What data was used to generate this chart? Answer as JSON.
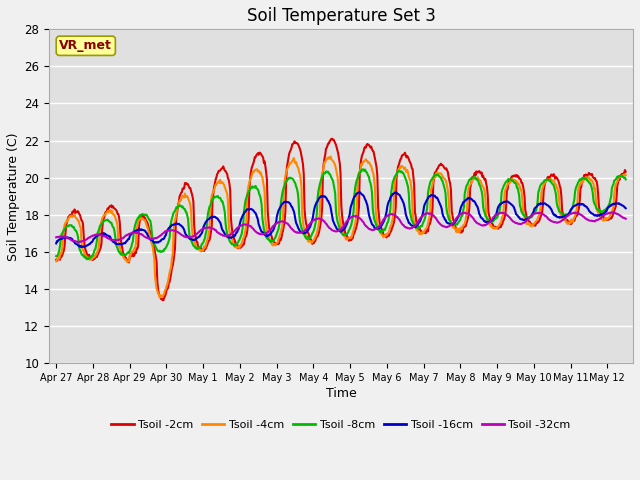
{
  "title": "Soil Temperature Set 3",
  "xlabel": "Time",
  "ylabel": "Soil Temperature (C)",
  "ylim": [
    10,
    28
  ],
  "annotation": "VR_met",
  "plot_bg_color": "#e0e0e0",
  "fig_bg_color": "#f0f0f0",
  "series": {
    "Tsoil -2cm": {
      "color": "#dd0000",
      "lw": 1.5
    },
    "Tsoil -4cm": {
      "color": "#ff8800",
      "lw": 1.5
    },
    "Tsoil -8cm": {
      "color": "#00bb00",
      "lw": 1.5
    },
    "Tsoil -16cm": {
      "color": "#0000cc",
      "lw": 1.5
    },
    "Tsoil -32cm": {
      "color": "#bb00bb",
      "lw": 1.5
    }
  },
  "xtick_labels": [
    "Apr 27",
    "Apr 28",
    "Apr 29",
    "Apr 30",
    "May 1",
    "May 2",
    "May 3",
    "May 4",
    "May 5",
    "May 6",
    "May 7",
    "May 8",
    "May 9",
    "May 10",
    "May 11",
    "May 12"
  ],
  "ytick_labels": [
    10,
    12,
    14,
    16,
    18,
    20,
    22,
    24,
    26,
    28
  ]
}
